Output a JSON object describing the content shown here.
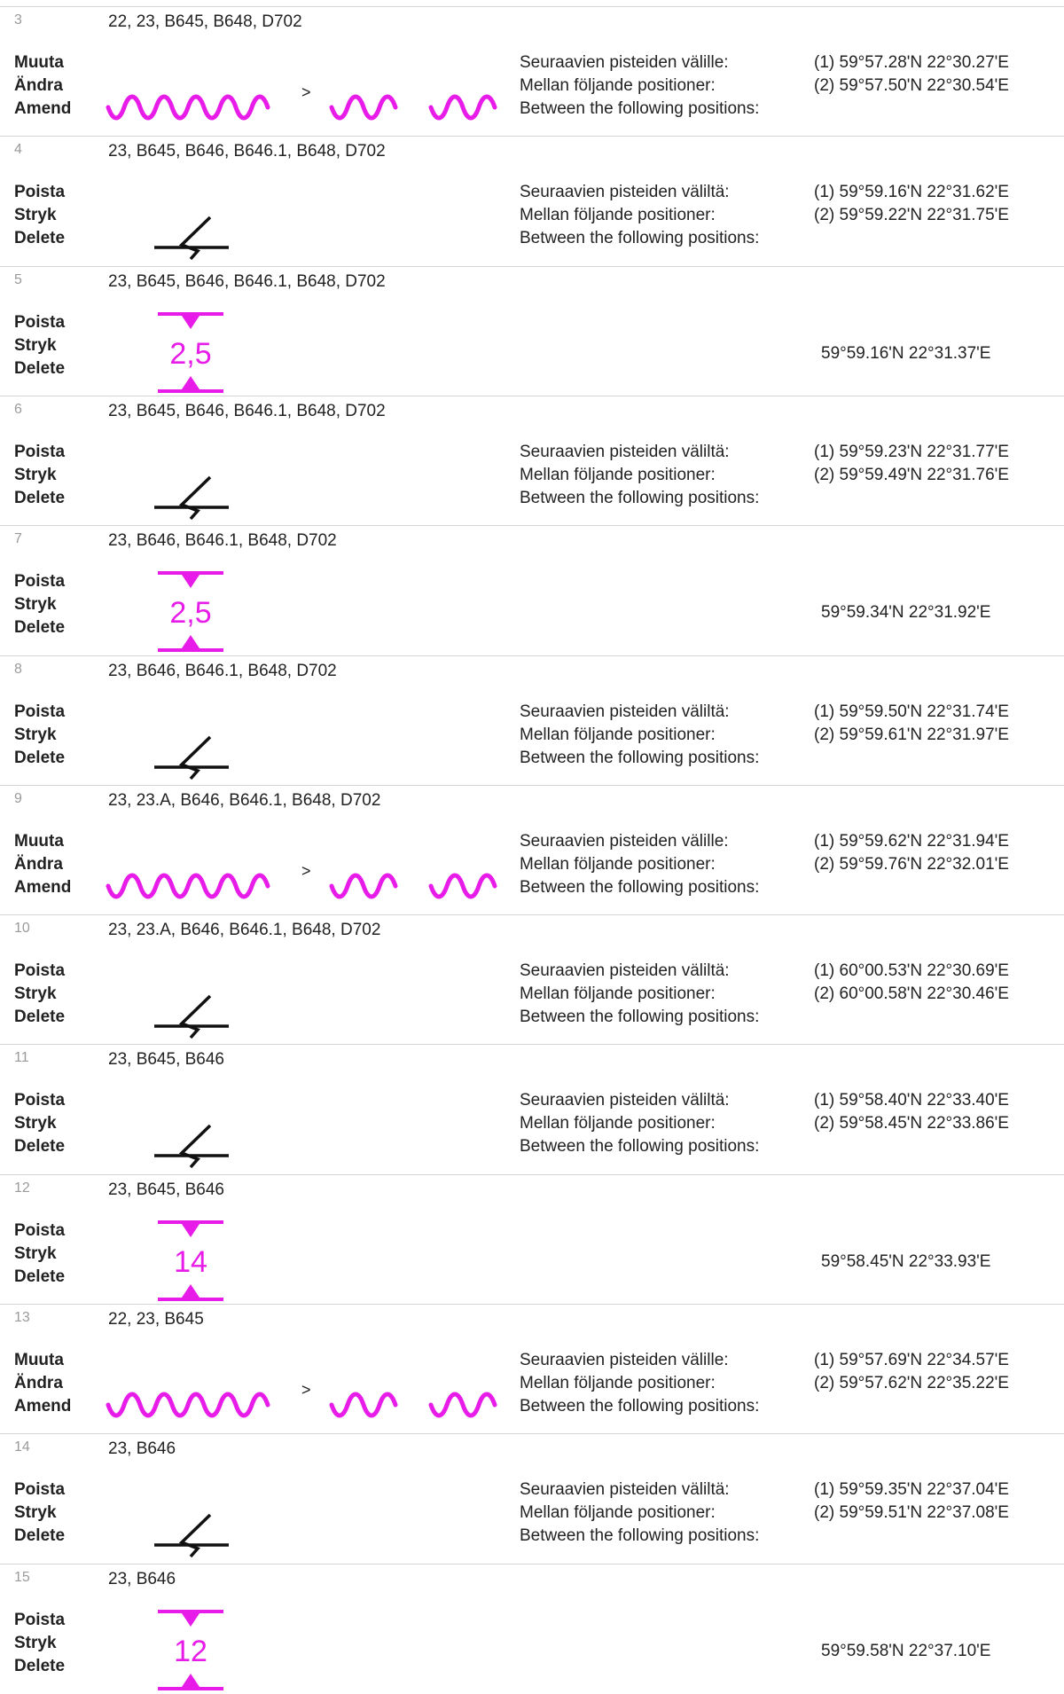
{
  "entries": [
    {
      "num": "3",
      "charts": "22, 23, B645, B648, D702",
      "action": [
        "Muuta",
        "Ändra",
        "Amend"
      ],
      "kind": "amend",
      "between": [
        "Seuraavien pisteiden välille:",
        "Mellan följande positioner:",
        "Between the following positions:"
      ],
      "positions": [
        "(1) 59°57.28'N   22°30.27'E",
        "(2) 59°57.50'N   22°30.54'E"
      ],
      "arrow": ">"
    },
    {
      "num": "4",
      "charts": "23, B645, B646, B646.1, B648, D702",
      "action": [
        "Poista",
        "Stryk",
        "Delete"
      ],
      "kind": "delete",
      "between": [
        "Seuraavien pisteiden väliltä:",
        "Mellan följande positioner:",
        "Between the following positions:"
      ],
      "positions": [
        "(1) 59°59.16'N   22°31.62'E",
        "(2) 59°59.22'N   22°31.75'E"
      ]
    },
    {
      "num": "5",
      "charts": "23, B645, B646, B646.1, B648, D702",
      "action": [
        "Poista",
        "Stryk",
        "Delete"
      ],
      "kind": "depth",
      "depth": "2,5",
      "position": "59°59.16'N   22°31.37'E"
    },
    {
      "num": "6",
      "charts": "23, B645, B646, B646.1, B648, D702",
      "action": [
        "Poista",
        "Stryk",
        "Delete"
      ],
      "kind": "delete",
      "between": [
        "Seuraavien pisteiden väliltä:",
        "Mellan följande positioner:",
        "Between the following positions:"
      ],
      "positions": [
        "(1) 59°59.23'N   22°31.77'E",
        "(2) 59°59.49'N   22°31.76'E"
      ]
    },
    {
      "num": "7",
      "charts": "23, B646, B646.1, B648, D702",
      "action": [
        "Poista",
        "Stryk",
        "Delete"
      ],
      "kind": "depth",
      "depth": "2,5",
      "position": "59°59.34'N   22°31.92'E"
    },
    {
      "num": "8",
      "charts": "23, B646, B646.1, B648, D702",
      "action": [
        "Poista",
        "Stryk",
        "Delete"
      ],
      "kind": "delete",
      "between": [
        "Seuraavien pisteiden väliltä:",
        "Mellan följande positioner:",
        "Between the following positions:"
      ],
      "positions": [
        "(1) 59°59.50'N   22°31.74'E",
        "(2) 59°59.61'N   22°31.97'E"
      ]
    },
    {
      "num": "9",
      "charts": "23, 23.A, B646, B646.1, B648, D702",
      "action": [
        "Muuta",
        "Ändra",
        "Amend"
      ],
      "kind": "amend",
      "between": [
        "Seuraavien pisteiden välille:",
        "Mellan följande positioner:",
        "Between the following positions:"
      ],
      "positions": [
        "(1) 59°59.62'N   22°31.94'E",
        "(2) 59°59.76'N   22°32.01'E"
      ],
      "arrow": ">"
    },
    {
      "num": "10",
      "charts": "23, 23.A, B646, B646.1, B648, D702",
      "action": [
        "Poista",
        "Stryk",
        "Delete"
      ],
      "kind": "delete",
      "between": [
        "Seuraavien pisteiden väliltä:",
        "Mellan följande positioner:",
        "Between the following positions:"
      ],
      "positions": [
        "(1) 60°00.53'N   22°30.69'E",
        "(2) 60°00.58'N   22°30.46'E"
      ]
    },
    {
      "num": "11",
      "charts": "23, B645, B646",
      "action": [
        "Poista",
        "Stryk",
        "Delete"
      ],
      "kind": "delete",
      "between": [
        "Seuraavien pisteiden väliltä:",
        "Mellan följande positioner:",
        "Between the following positions:"
      ],
      "positions": [
        "(1) 59°58.40'N   22°33.40'E",
        "(2) 59°58.45'N   22°33.86'E"
      ]
    },
    {
      "num": "12",
      "charts": "23, B645, B646",
      "action": [
        "Poista",
        "Stryk",
        "Delete"
      ],
      "kind": "depth",
      "depth": "14",
      "position": "59°58.45'N   22°33.93'E"
    },
    {
      "num": "13",
      "charts": "22, 23, B645",
      "action": [
        "Muuta",
        "Ändra",
        "Amend"
      ],
      "kind": "amend",
      "between": [
        "Seuraavien pisteiden välille:",
        "Mellan följande positioner:",
        "Between the following positions:"
      ],
      "positions": [
        "(1) 59°57.69'N   22°34.57'E",
        "(2) 59°57.62'N   22°35.22'E"
      ],
      "arrow": ">"
    },
    {
      "num": "14",
      "charts": "23, B646",
      "action": [
        "Poista",
        "Stryk",
        "Delete"
      ],
      "kind": "delete",
      "between": [
        "Seuraavien pisteiden väliltä:",
        "Mellan följande positioner:",
        "Between the following positions:"
      ],
      "positions": [
        "(1) 59°59.35'N   22°37.04'E",
        "(2) 59°59.51'N   22°37.08'E"
      ]
    },
    {
      "num": "15",
      "charts": "23, B646",
      "action": [
        "Poista",
        "Stryk",
        "Delete"
      ],
      "kind": "depth",
      "depth": "12",
      "position": "59°59.58'N   22°37.10'E"
    }
  ],
  "colors": {
    "depth_symbol": "#e81ce8",
    "line_symbol": "#111111",
    "divider": "#d4d4d4"
  }
}
